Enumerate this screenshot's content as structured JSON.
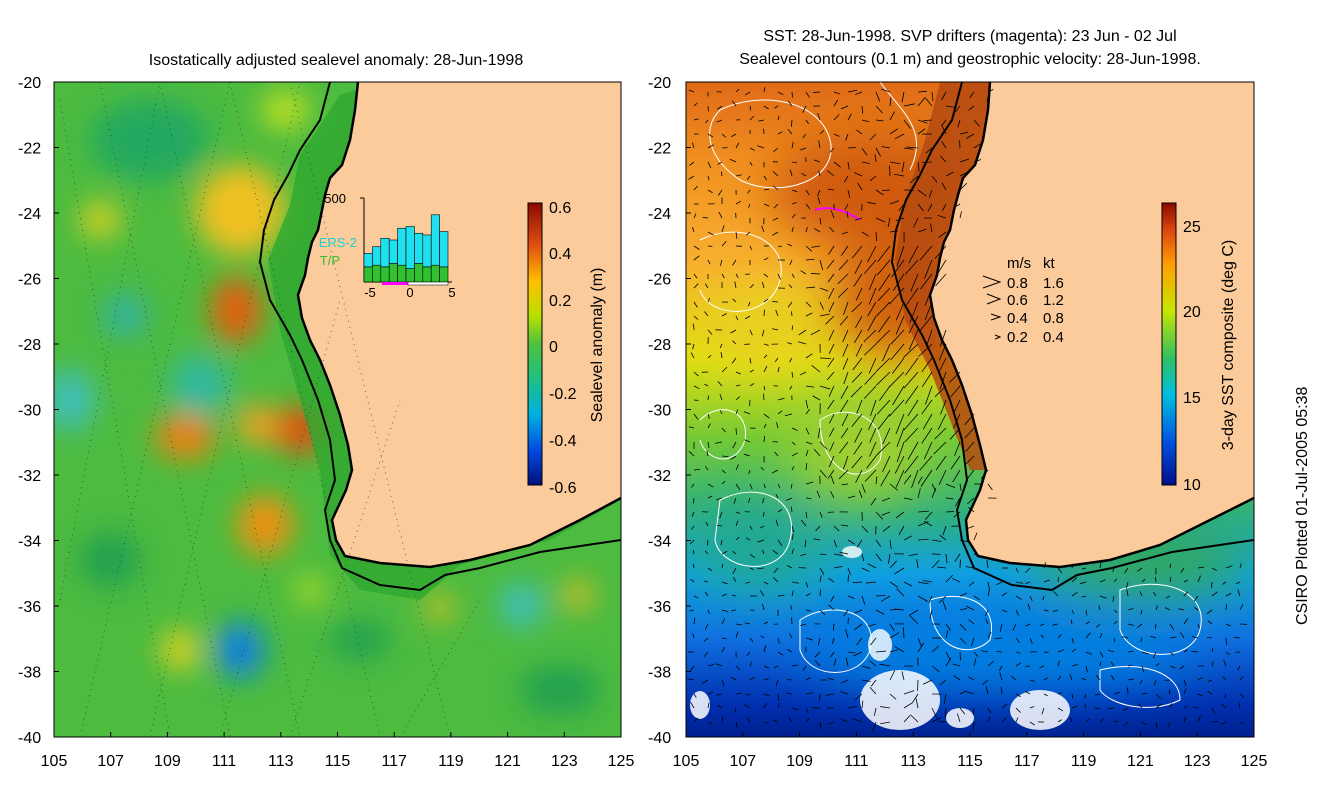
{
  "left_panel": {
    "title": "Isostatically adjusted sealevel anomaly: 28-Jun-1998",
    "colorbar": {
      "label": "Sealevel anomaly (m)",
      "ticks": [
        "0.6",
        "0.4",
        "0.2",
        "0",
        "-0.2",
        "-0.4",
        "-0.6"
      ]
    },
    "inset": {
      "ymax_label": "500",
      "series_labels": [
        "ERS-2",
        "T/P"
      ],
      "x_ticks": [
        "-5",
        "0",
        "5"
      ],
      "ers2_values": [
        80,
        110,
        170,
        140,
        220,
        250,
        180,
        190,
        300,
        210
      ],
      "tp_values": [
        90,
        100,
        90,
        110,
        100,
        80,
        110,
        90,
        100,
        90
      ]
    }
  },
  "right_panel": {
    "title_line1": "SST: 28-Jun-1998. SVP drifters (magenta): 23 Jun - 02 Jul",
    "title_line2": "Sealevel contours (0.1 m) and geostrophic velocity: 28-Jun-1998.",
    "colorbar": {
      "label": "3-day SST composite (deg C)",
      "ticks": [
        "25",
        "20",
        "15",
        "10"
      ]
    },
    "velocity_legend": {
      "header_ms": "m/s",
      "header_kt": "kt",
      "rows": [
        {
          "ms": "0.8",
          "kt": "1.6"
        },
        {
          "ms": "0.6",
          "kt": "1.2"
        },
        {
          "ms": "0.4",
          "kt": "0.8"
        },
        {
          "ms": "0.2",
          "kt": "0.4"
        }
      ]
    }
  },
  "axes": {
    "lat_ticks": [
      "-20",
      "-22",
      "-24",
      "-26",
      "-28",
      "-30",
      "-32",
      "-34",
      "-36",
      "-38",
      "-40"
    ],
    "lon_ticks": [
      "105",
      "107",
      "109",
      "111",
      "113",
      "115",
      "117",
      "119",
      "121",
      "123",
      "125"
    ]
  },
  "footer": {
    "plotted_note": "CSIRO Plotted 01-Jul-2005 05:38"
  },
  "colors": {
    "land": "#fccb9b",
    "ocean_mid": "#4fbf3a",
    "contour": "#ffffff",
    "drifter": "#ff00ff"
  }
}
